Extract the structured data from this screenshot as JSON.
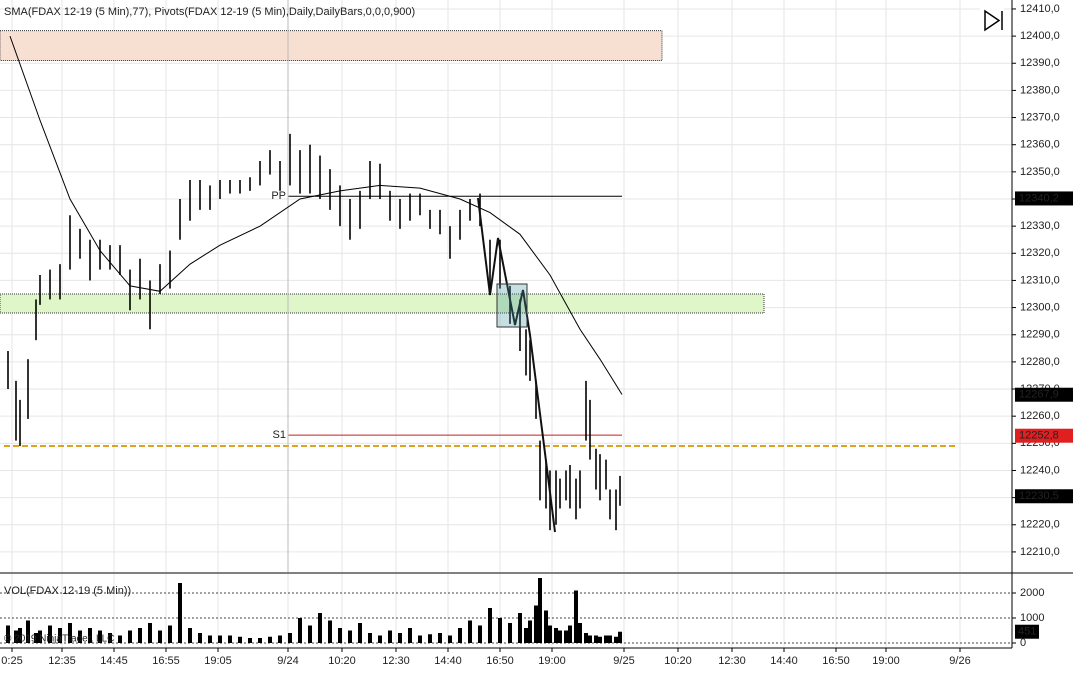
{
  "chart_data": [
    {
      "type": "ohlc",
      "title": "SMA(FDAX 12-19 (5 Min),77), Pivots(FDAX 12-19 (5 Min),Daily,DailyBars,0,0,0,900)",
      "copyright": "© 2019 NinjaTrader, LLC",
      "color": "#000000",
      "grid": true,
      "xlim": [
        -2,
        504
      ],
      "ylim": [
        12202.6,
        12413.3
      ],
      "xticks": [
        {
          "value": 4,
          "label": "0:25"
        },
        {
          "value": 29,
          "label": "12:35"
        },
        {
          "value": 55,
          "label": "14:45"
        },
        {
          "value": 81,
          "label": "16:55"
        },
        {
          "value": 107,
          "label": "19:05"
        },
        {
          "value": 142,
          "label": "9/24"
        },
        {
          "value": 169,
          "label": "10:20"
        },
        {
          "value": 196,
          "label": "12:30"
        },
        {
          "value": 222,
          "label": "14:40"
        },
        {
          "value": 248,
          "label": "16:50"
        },
        {
          "value": 274,
          "label": "19:00"
        },
        {
          "value": 310,
          "label": "9/25"
        },
        {
          "value": 337,
          "label": "10:20"
        },
        {
          "value": 364,
          "label": "12:30"
        },
        {
          "value": 390,
          "label": "14:40"
        },
        {
          "value": 416,
          "label": "16:50"
        },
        {
          "value": 441,
          "label": "19:00"
        },
        {
          "value": 478,
          "label": "9/26"
        }
      ],
      "yticks": [
        {
          "value": 12210,
          "label": "12210,0"
        },
        {
          "value": 12220,
          "label": "12220,0"
        },
        {
          "value": 12230,
          "label": "12230,0"
        },
        {
          "value": 12240,
          "label": "12240,0"
        },
        {
          "value": 12250,
          "label": "12250,0"
        },
        {
          "value": 12260,
          "label": "12260,0"
        },
        {
          "value": 12270,
          "label": "12270,0"
        },
        {
          "value": 12280,
          "label": "12280,0"
        },
        {
          "value": 12290,
          "label": "12290,0"
        },
        {
          "value": 12300,
          "label": "12300,0"
        },
        {
          "value": 12310,
          "label": "12310,0"
        },
        {
          "value": 12320,
          "label": "12320,0"
        },
        {
          "value": 12330,
          "label": "12330,0"
        },
        {
          "value": 12340,
          "label": "12340,0"
        },
        {
          "value": 12350,
          "label": "12350,0"
        },
        {
          "value": 12360,
          "label": "12360,0"
        },
        {
          "value": 12370,
          "label": "12370,0"
        },
        {
          "value": 12380,
          "label": "12380,0"
        },
        {
          "value": 12390,
          "label": "12390,0"
        },
        {
          "value": 12400,
          "label": "12400,0"
        },
        {
          "value": 12410,
          "label": "12410,0"
        }
      ],
      "x": [
        2,
        6,
        8,
        12,
        16,
        18,
        23,
        28,
        33,
        38,
        43,
        48,
        53,
        58,
        63,
        68,
        73,
        78,
        83,
        88,
        93,
        98,
        103,
        108,
        113,
        118,
        123,
        128,
        133,
        138,
        143,
        148,
        153,
        158,
        163,
        168,
        173,
        178,
        183,
        188,
        193,
        198,
        203,
        208,
        213,
        218,
        223,
        228,
        233,
        238,
        243,
        248,
        253,
        258,
        261,
        263,
        266,
        268,
        271,
        273,
        276,
        278,
        281,
        283,
        286,
        288,
        291,
        293,
        296,
        298,
        301,
        303,
        306,
        308
      ],
      "high": [
        12284,
        12273,
        12266,
        12281,
        12303,
        12312,
        12314,
        12316,
        12334,
        12329,
        12325,
        12325,
        12323,
        12323,
        12314,
        12318,
        12310,
        12316,
        12321,
        12340,
        12347,
        12347,
        12345,
        12347,
        12347,
        12347,
        12348,
        12354,
        12358,
        12354,
        12364,
        12358,
        12360,
        12356,
        12351,
        12345,
        12340,
        12343,
        12354,
        12353,
        12343,
        12340,
        12342,
        12342,
        12336,
        12336,
        12330,
        12336,
        12340,
        12342,
        12325,
        12325,
        12308,
        12303,
        12292,
        12288,
        12273,
        12251,
        12244,
        12240,
        12240,
        12237,
        12240,
        12242,
        12237,
        12240,
        12273,
        12266,
        12248,
        12246,
        12244,
        12233,
        12233,
        12238
      ],
      "low": [
        12270,
        12251,
        12249,
        12259,
        12288,
        12301,
        12303,
        12303,
        12314,
        12318,
        12310,
        12314,
        12314,
        12312,
        12299,
        12303,
        12292,
        12305,
        12307,
        12325,
        12332,
        12336,
        12336,
        12340,
        12342,
        12342,
        12343,
        12345,
        12349,
        12343,
        12345,
        12342,
        12342,
        12340,
        12336,
        12330,
        12325,
        12329,
        12340,
        12340,
        12332,
        12329,
        12332,
        12334,
        12329,
        12327,
        12318,
        12325,
        12332,
        12330,
        12305,
        12307,
        12294,
        12284,
        12275,
        12273,
        12259,
        12229,
        12226,
        12218,
        12220,
        12226,
        12229,
        12226,
        12222,
        12226,
        12251,
        12244,
        12233,
        12229,
        12233,
        12222,
        12218,
        12227
      ],
      "sma": {
        "color": "#000000",
        "x": [
          3,
          18,
          33,
          48,
          63,
          78,
          93,
          108,
          128,
          148,
          168,
          188,
          208,
          228,
          243,
          258,
          273,
          288,
          298,
          309
        ],
        "values": [
          12400,
          12369,
          12340,
          12321,
          12308,
          12306,
          12316,
          12323,
          12330,
          12340,
          12343,
          12345,
          12344,
          12340,
          12335,
          12327,
          12312,
          12292,
          12281,
          12268
        ]
      },
      "zones": [
        {
          "top": 12402,
          "bottom": 12391,
          "x_end": 329,
          "color": "#f7dfd2"
        },
        {
          "top": 12305,
          "bottom": 12298,
          "x_end": 380,
          "color": "#dff7c8"
        }
      ],
      "levels": [
        {
          "label": "PP",
          "value": 12341,
          "x_start": 142,
          "x_end": 309,
          "color": "#000000"
        },
        {
          "label": "S1",
          "value": 12253,
          "x_start": 142,
          "x_end": 309,
          "color": "#c02020"
        },
        {
          "value": 12249,
          "x_start": 0,
          "x_end": 477,
          "color": "#e0a020",
          "dashed": true
        }
      ],
      "price_markers": [
        {
          "value": 12340.2,
          "label": "12340,2",
          "color": "#000000"
        },
        {
          "value": 12267.9,
          "label": "12267,9",
          "color": "#000000"
        },
        {
          "value": 12252.8,
          "label": "12252,8",
          "color": "#e02020"
        },
        {
          "value": 12230.5,
          "label": "12230,5",
          "color": "#000000"
        }
      ]
    },
    {
      "type": "bar",
      "title": "VOL(FDAX 12-19 (5 Min))",
      "color": "#000000",
      "ylim": [
        0,
        2640
      ],
      "yticks": [
        0,
        1000,
        2000
      ],
      "x": [
        2,
        6,
        8,
        12,
        16,
        18,
        23,
        28,
        33,
        38,
        43,
        48,
        53,
        58,
        63,
        68,
        73,
        78,
        83,
        88,
        93,
        98,
        103,
        108,
        113,
        118,
        123,
        128,
        133,
        138,
        143,
        148,
        153,
        158,
        163,
        168,
        173,
        178,
        183,
        188,
        193,
        198,
        203,
        208,
        213,
        218,
        223,
        228,
        233,
        238,
        243,
        248,
        253,
        258,
        261,
        263,
        266,
        268,
        271,
        273,
        276,
        278,
        281,
        283,
        286,
        288,
        291,
        293,
        296,
        298,
        301,
        303,
        306,
        308
      ],
      "values": [
        700,
        500,
        600,
        900,
        400,
        500,
        700,
        600,
        800,
        500,
        600,
        500,
        400,
        300,
        500,
        600,
        800,
        500,
        700,
        2400,
        600,
        400,
        300,
        300,
        300,
        250,
        200,
        200,
        250,
        300,
        400,
        1000,
        700,
        1200,
        900,
        600,
        500,
        800,
        400,
        300,
        500,
        400,
        600,
        300,
        350,
        400,
        300,
        600,
        900,
        700,
        1400,
        1000,
        800,
        1200,
        600,
        900,
        1500,
        2600,
        1300,
        700,
        600,
        500,
        500,
        700,
        2100,
        800,
        400,
        300,
        300,
        250,
        300,
        300,
        250,
        451
      ]
    }
  ]
}
